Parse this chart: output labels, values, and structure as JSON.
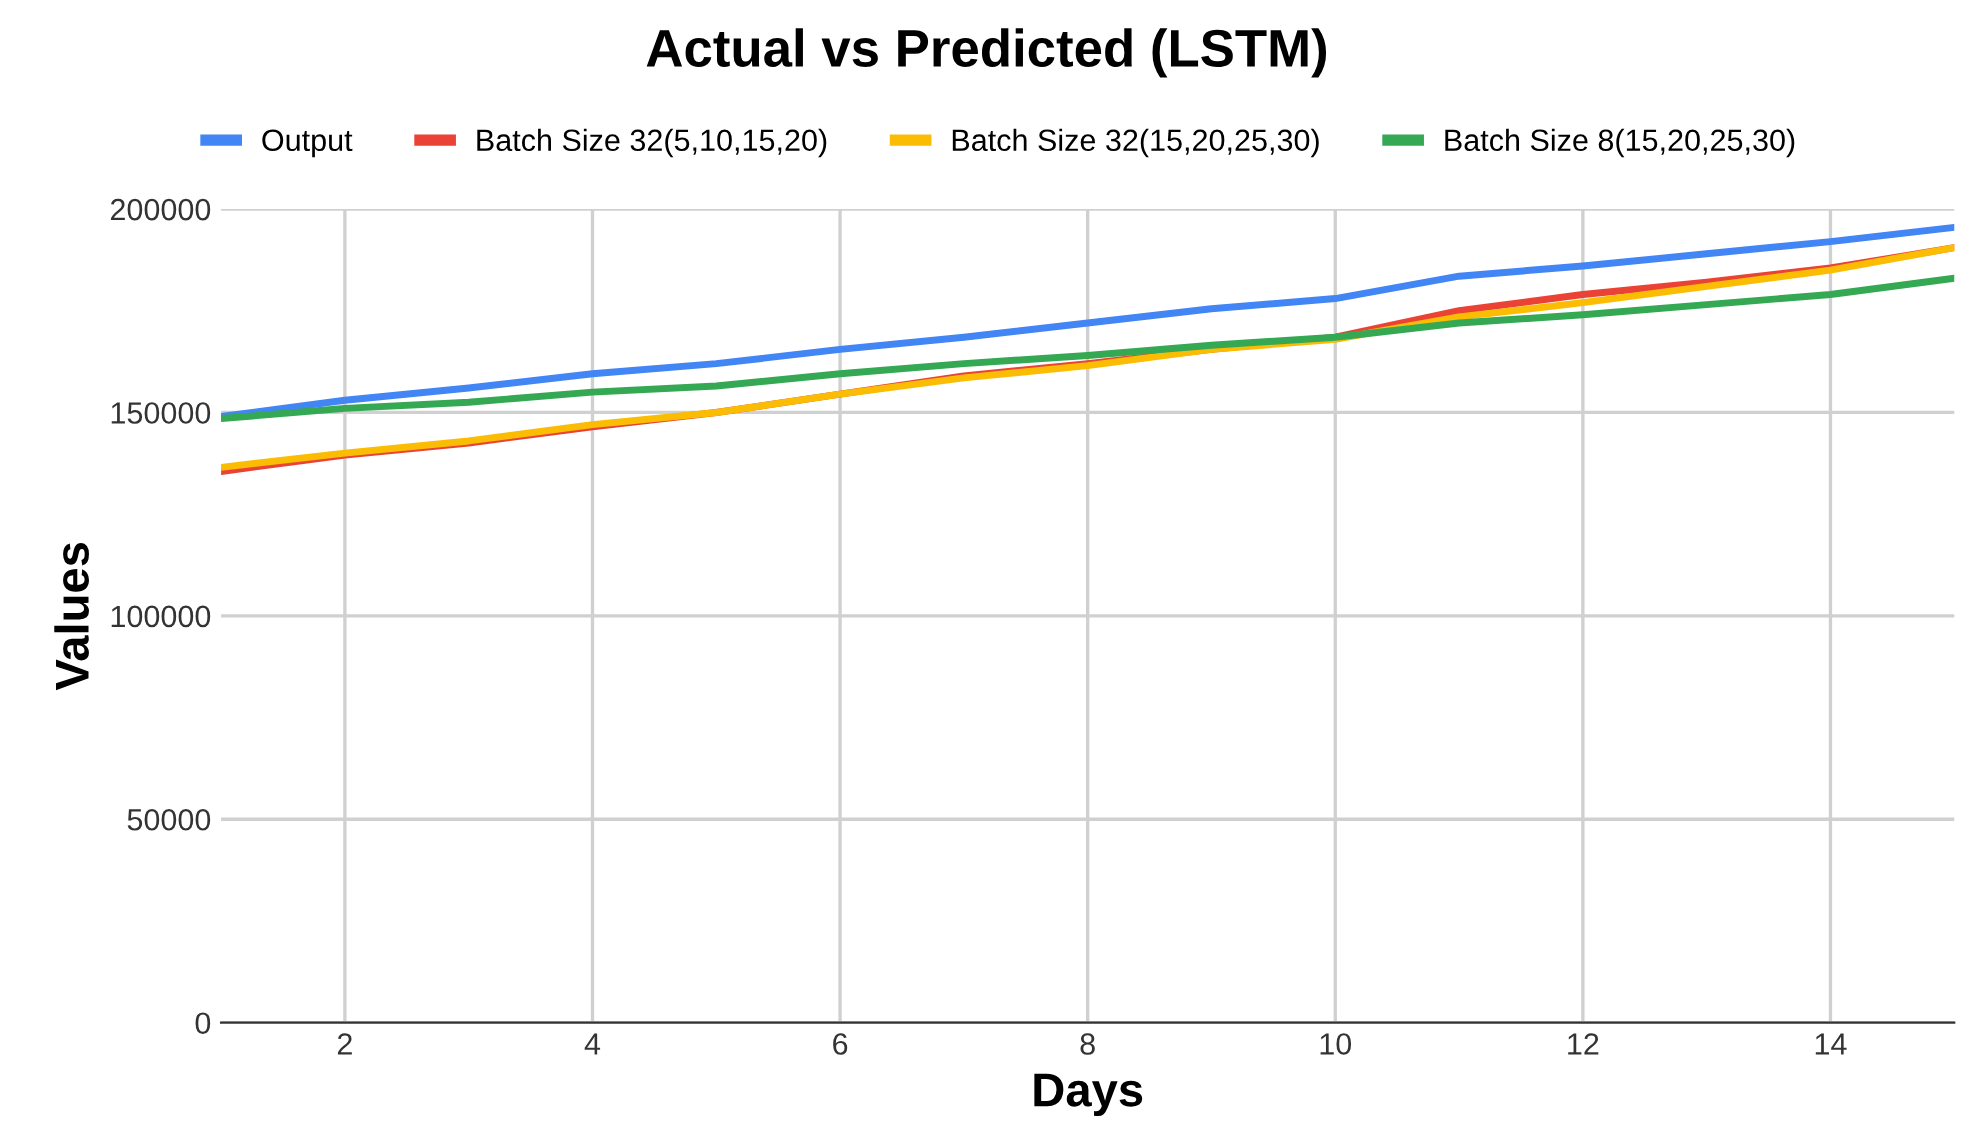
{
  "chart_data": {
    "type": "line",
    "title": "Actual vs Predicted (LSTM)",
    "xlabel": "Days",
    "ylabel": "Values",
    "x": [
      1,
      2,
      3,
      4,
      5,
      6,
      7,
      8,
      9,
      10,
      11,
      12,
      13,
      14,
      15
    ],
    "series": [
      {
        "name": "Output",
        "color": "#4285f4",
        "values": [
          149000,
          153000,
          156000,
          159500,
          162000,
          165500,
          168500,
          172000,
          175500,
          178000,
          183500,
          186000,
          189000,
          192000,
          195500
        ]
      },
      {
        "name": "Batch Size 32(5,10,15,20)",
        "color": "#ea4335",
        "values": [
          135500,
          139500,
          142500,
          146500,
          150000,
          154500,
          159000,
          162000,
          165500,
          168500,
          175000,
          179000,
          182000,
          185500,
          190500
        ]
      },
      {
        "name": "Batch Size 32(15,20,25,30)",
        "color": "#fbbc04",
        "values": [
          136500,
          140000,
          143000,
          147000,
          150000,
          154500,
          158500,
          161500,
          165500,
          168000,
          173500,
          177000,
          181000,
          185000,
          190500
        ]
      },
      {
        "name": "Batch Size 8(15,20,25,30)",
        "color": "#34a853",
        "values": [
          148500,
          151000,
          152500,
          155000,
          156500,
          159500,
          162000,
          164000,
          166500,
          168500,
          172000,
          174000,
          176500,
          179000,
          183000
        ]
      }
    ],
    "xlim": [
      1,
      15
    ],
    "xticks": [
      2,
      4,
      6,
      8,
      10,
      12,
      14
    ],
    "ylim": [
      0,
      200000
    ],
    "yticks": [
      0,
      50000,
      100000,
      150000,
      200000
    ],
    "grid": true,
    "legend": "top",
    "marker": "none",
    "line_style": "solid"
  }
}
